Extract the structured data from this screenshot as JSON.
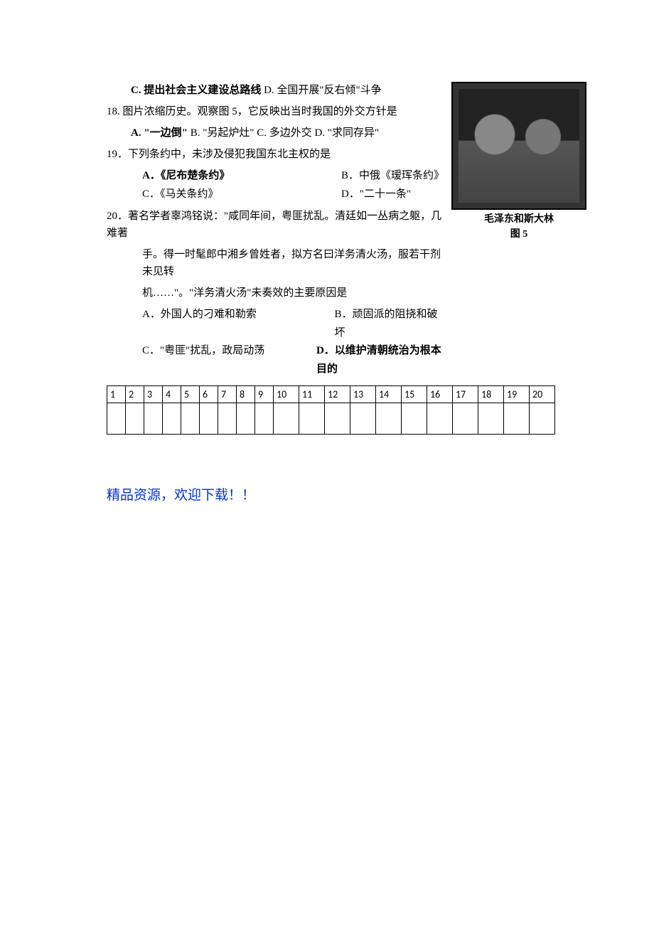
{
  "image": {
    "caption_line1": "毛泽东和斯大林",
    "caption_line2": "图 5"
  },
  "lines": {
    "q17_cd": "C. 提出社会主义建设总路线  D. 全国开展\"反右倾\"斗争",
    "q18": "18. 图片浓缩历史。观察图 5，它反映出当时我国的外交方针是",
    "q18_ab": "A. \"一边倒\" B. \"另起炉灶\" C. 多边外交   D. \"求同存异\"",
    "q19": "19．下列条约中，未涉及侵犯我国东北主权的是",
    "q19_a": "A．《尼布楚条约》",
    "q19_b": "B．中俄《瑷珲条约》",
    "q19_c": "C．《马关条约》",
    "q19_d": "D．\"二十一条\"",
    "q20_1": "20．著名学者辜鸿铭说：\"咸同年间，粤匪扰乱。清廷如一丛病之躯，几难著",
    "q20_2": "手。得一时髦郎中湘乡曾姓者，拟方名曰洋务清火汤，服若干剂未见转",
    "q20_3": "机……\"。\"洋务清火汤\"未奏效的主要原因是",
    "q20_a": "A．外国人的刁难和勒索",
    "q20_b": "B．顽固派的阻挠和破坏",
    "q20_c": "C．\"粤匪\"扰乱，政局动荡",
    "q20_d": "D．以维护清朝统治为根本目的"
  },
  "table": {
    "headers": [
      "1",
      "2",
      "3",
      "4",
      "5",
      "6",
      "7",
      "8",
      "9",
      "10",
      "11",
      "12",
      "13",
      "14",
      "15",
      "16",
      "17",
      "18",
      "19",
      "20"
    ]
  },
  "footer": "精品资源，欢迎下载！！",
  "bold": {
    "q17_c": "C. 提出社会主义建设总路线",
    "q18_a": "A. \"一边倒\"",
    "q19_a": "A．《尼布楚条约》",
    "q20_d": "D．以维护清朝统治为根本目的"
  }
}
